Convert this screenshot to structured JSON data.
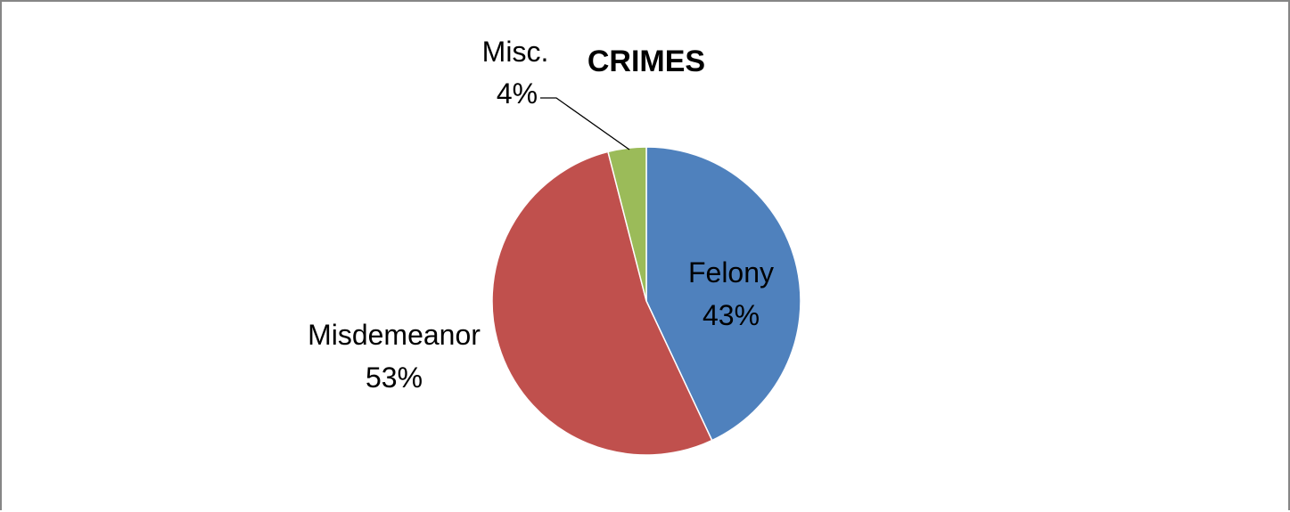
{
  "chart_data": {
    "type": "pie",
    "title": "CRIMES",
    "slices": [
      {
        "name": "Felony",
        "value": 43,
        "label": "43%",
        "color": "#4F81BD"
      },
      {
        "name": "Misdemeanor",
        "value": 53,
        "label": "53%",
        "color": "#C0504D"
      },
      {
        "name": "Misc.",
        "value": 4,
        "label": "4%",
        "color": "#9BBB59"
      }
    ],
    "start_angle_deg": 0,
    "direction": "clockwise",
    "legend": "none"
  }
}
